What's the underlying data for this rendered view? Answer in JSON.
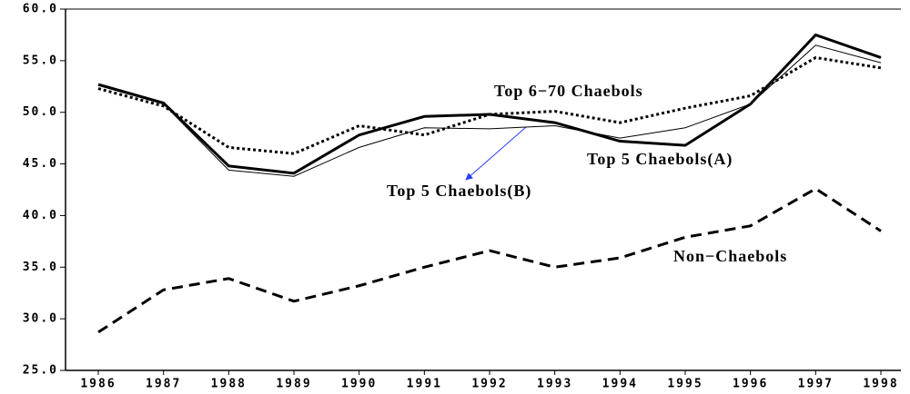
{
  "chart_data": {
    "type": "line",
    "categories": [
      "1986",
      "1987",
      "1988",
      "1989",
      "1990",
      "1991",
      "1992",
      "1993",
      "1994",
      "1995",
      "1996",
      "1997",
      "1998"
    ],
    "ylim": [
      25,
      60
    ],
    "yticks": [
      {
        "value": 25,
        "label": "25.0"
      },
      {
        "value": 30,
        "label": "30.0"
      },
      {
        "value": 35,
        "label": "35.0"
      },
      {
        "value": 40,
        "label": "40.0"
      },
      {
        "value": 45,
        "label": "45.0"
      },
      {
        "value": 50,
        "label": "50.0"
      },
      {
        "value": 55,
        "label": "55.0"
      },
      {
        "value": 60,
        "label": "60.0"
      }
    ],
    "grid": false,
    "series": [
      {
        "name": "Top 5 Chaebols(A)",
        "color": "#000000",
        "style": "solid",
        "width": 3,
        "values": [
          52.7,
          50.9,
          44.8,
          44.1,
          47.8,
          49.6,
          49.8,
          49.0,
          47.2,
          46.8,
          50.8,
          57.5,
          55.3
        ]
      },
      {
        "name": "Top 5 Chaebols(B)",
        "color": "#000000",
        "style": "solid",
        "width": 1,
        "values": [
          52.6,
          50.8,
          44.4,
          43.8,
          46.6,
          48.5,
          48.4,
          48.7,
          47.5,
          48.5,
          50.8,
          56.5,
          54.8
        ]
      },
      {
        "name": "Top 6−70 Chaebols",
        "color": "#000000",
        "style": "dotted",
        "width": 3,
        "values": [
          52.3,
          50.6,
          46.6,
          46.0,
          48.7,
          47.8,
          49.8,
          50.1,
          49.0,
          50.4,
          51.6,
          55.3,
          54.3
        ]
      },
      {
        "name": "Non−Chaebols",
        "color": "#000000",
        "style": "dashed",
        "width": 3,
        "values": [
          28.7,
          32.8,
          33.9,
          31.7,
          33.2,
          35.0,
          36.6,
          35.0,
          35.9,
          37.9,
          39.0,
          42.6,
          38.5
        ]
      }
    ]
  }
}
